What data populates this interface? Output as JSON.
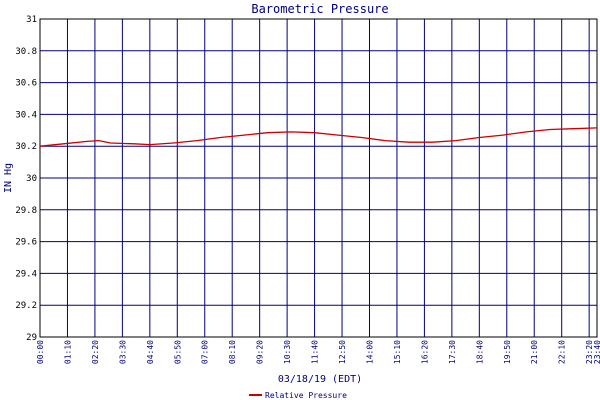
{
  "chart_data": {
    "type": "line",
    "title": "Barometric Pressure",
    "xlabel": "03/18/19 (EDT)",
    "ylabel": "IN Hg",
    "ylim": [
      29,
      31
    ],
    "yticks": [
      "29",
      "29.2",
      "29.4",
      "29.6",
      "29.8",
      "30",
      "30.2",
      "30.4",
      "30.6",
      "30.8",
      "31"
    ],
    "xticks": [
      "00:00",
      "01:10",
      "02:20",
      "03:30",
      "04:40",
      "05:50",
      "07:00",
      "08:10",
      "09:20",
      "10:30",
      "11:40",
      "12:50",
      "14:00",
      "15:10",
      "16:20",
      "17:30",
      "18:40",
      "19:50",
      "21:00",
      "22:10",
      "23:20",
      "23:40"
    ],
    "grid": true,
    "legend_position": "bottom-center",
    "colors": {
      "series": "#cc0000",
      "grid": "#000080",
      "text": "#000080",
      "frame": "#000000"
    },
    "series": [
      {
        "name": "Relative Pressure",
        "x": [
          "00:00",
          "01:00",
          "02:00",
          "02:30",
          "03:00",
          "04:00",
          "04:40",
          "05:40",
          "06:40",
          "07:40",
          "08:40",
          "09:40",
          "10:40",
          "11:40",
          "12:40",
          "13:40",
          "14:40",
          "15:40",
          "16:40",
          "17:40",
          "18:40",
          "19:40",
          "20:40",
          "21:40",
          "22:40",
          "23:40"
        ],
        "values": [
          30.2,
          30.215,
          30.23,
          30.235,
          30.22,
          30.215,
          30.21,
          30.22,
          30.235,
          30.255,
          30.27,
          30.285,
          30.29,
          30.285,
          30.27,
          30.255,
          30.235,
          30.225,
          30.225,
          30.235,
          30.255,
          30.27,
          30.29,
          30.305,
          30.31,
          30.315
        ]
      }
    ]
  }
}
